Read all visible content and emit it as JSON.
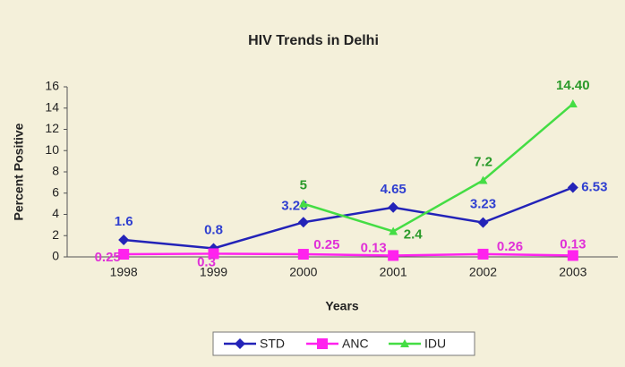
{
  "chart_data": {
    "type": "line",
    "title": "HIV Trends in Delhi",
    "x_label": "Years",
    "y_label": "Percent Positive",
    "categories": [
      "1998",
      "1999",
      "2000",
      "2001",
      "2002",
      "2003"
    ],
    "series": [
      {
        "name": "STD",
        "color": "#2323b8",
        "label_color": "#2f3fd0",
        "marker": "diamond",
        "values": [
          1.6,
          0.8,
          3.26,
          4.65,
          3.23,
          6.53
        ]
      },
      {
        "name": "ANC",
        "color": "#ff22ee",
        "label_color": "#e030d8",
        "marker": "square",
        "values": [
          0.25,
          0.3,
          0.25,
          0.13,
          0.26,
          0.13
        ]
      },
      {
        "name": "IDU",
        "color": "#44dd44",
        "label_color": "#2a9a2a",
        "marker": "triangle",
        "values": [
          null,
          null,
          5,
          2.4,
          7.2,
          14.4
        ],
        "value_labels": [
          null,
          null,
          "5",
          "2.4",
          "7.2",
          "14.40"
        ]
      }
    ],
    "ylim": [
      0,
      16
    ],
    "yticks": [
      0,
      2,
      4,
      6,
      8,
      10,
      12,
      14,
      16
    ],
    "grid": false,
    "legend": "bottom"
  }
}
